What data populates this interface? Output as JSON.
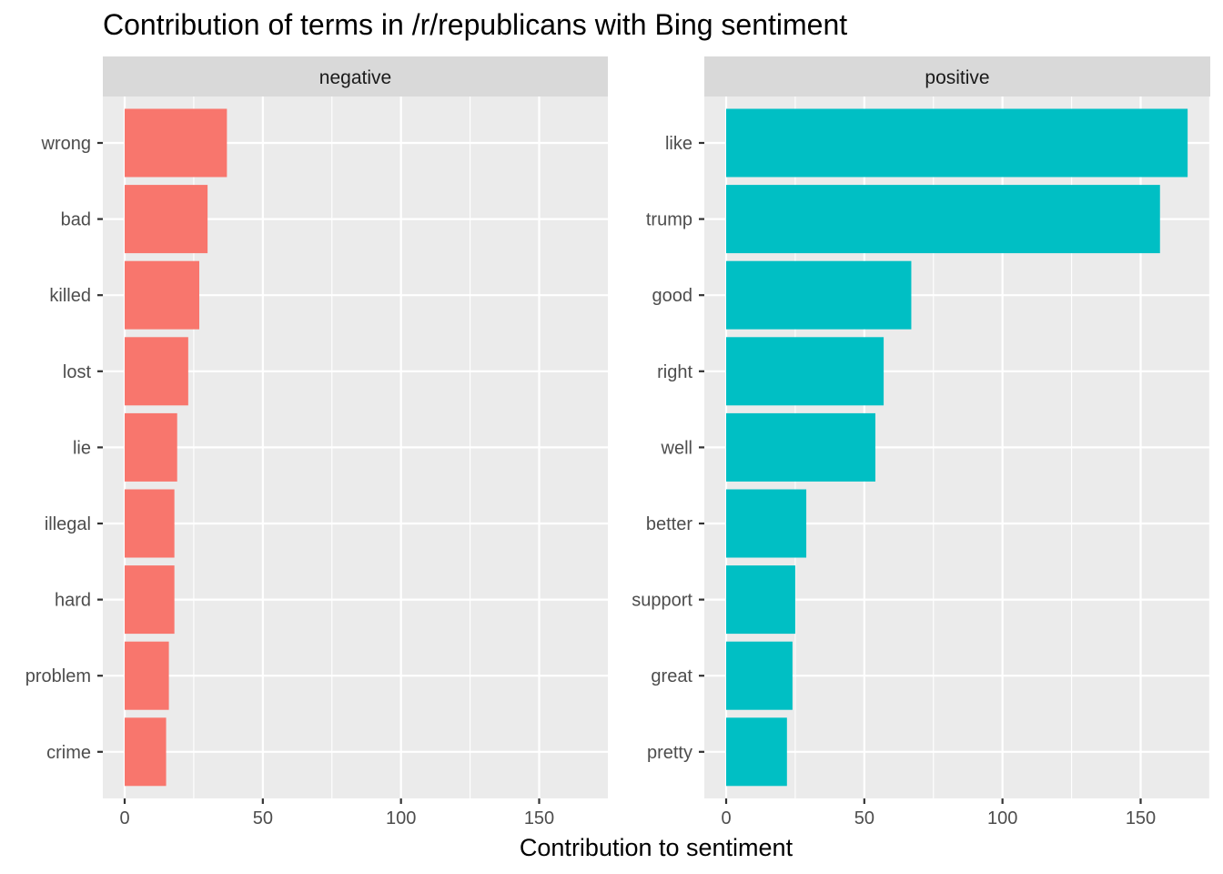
{
  "chart_data": {
    "type": "bar",
    "orientation": "horizontal",
    "title": "Contribution of terms in /r/republicans with Bing sentiment",
    "xlabel": "Contribution to sentiment",
    "ylabel": "",
    "xlim": [
      0,
      175
    ],
    "xticks": [
      "0",
      "50",
      "100",
      "150"
    ],
    "xtick_values": [
      0,
      50,
      100,
      150
    ],
    "grid": true,
    "legend": "none",
    "panels": [
      {
        "name": "negative",
        "color": "#F8766D",
        "categories": [
          "wrong",
          "bad",
          "killed",
          "lost",
          "lie",
          "illegal",
          "hard",
          "problem",
          "crime"
        ],
        "values": [
          37,
          30,
          27,
          23,
          19,
          18,
          18,
          16,
          15
        ]
      },
      {
        "name": "positive",
        "color": "#00BFC4",
        "categories": [
          "like",
          "trump",
          "good",
          "right",
          "well",
          "better",
          "support",
          "great",
          "pretty"
        ],
        "values": [
          167,
          157,
          67,
          57,
          54,
          29,
          25,
          24,
          22
        ]
      }
    ]
  }
}
